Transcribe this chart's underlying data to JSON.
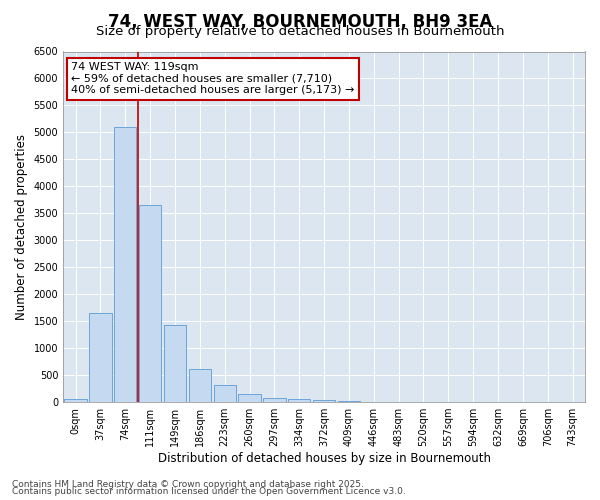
{
  "title": "74, WEST WAY, BOURNEMOUTH, BH9 3EA",
  "subtitle": "Size of property relative to detached houses in Bournemouth",
  "xlabel": "Distribution of detached houses by size in Bournemouth",
  "ylabel": "Number of detached properties",
  "categories": [
    "0sqm",
    "37sqm",
    "74sqm",
    "111sqm",
    "149sqm",
    "186sqm",
    "223sqm",
    "260sqm",
    "297sqm",
    "334sqm",
    "372sqm",
    "409sqm",
    "446sqm",
    "483sqm",
    "520sqm",
    "557sqm",
    "594sqm",
    "632sqm",
    "669sqm",
    "706sqm",
    "743sqm"
  ],
  "values": [
    65,
    1650,
    5100,
    3650,
    1430,
    610,
    310,
    150,
    80,
    50,
    30,
    15,
    5,
    2,
    1,
    1,
    0,
    0,
    0,
    0,
    0
  ],
  "bar_color": "#c5d9f1",
  "bar_edge_color": "#5b9bd5",
  "vline_color": "#c00000",
  "vline_position": 2.5,
  "annotation_line1": "74 WEST WAY: 119sqm",
  "annotation_line2": "← 59% of detached houses are smaller (7,710)",
  "annotation_line3": "40% of semi-detached houses are larger (5,173) →",
  "annotation_box_color": "#c00000",
  "ylim": [
    0,
    6500
  ],
  "yticks": [
    0,
    500,
    1000,
    1500,
    2000,
    2500,
    3000,
    3500,
    4000,
    4500,
    5000,
    5500,
    6000,
    6500
  ],
  "footer_line1": "Contains HM Land Registry data © Crown copyright and database right 2025.",
  "footer_line2": "Contains public sector information licensed under the Open Government Licence v3.0.",
  "fig_bg_color": "#ffffff",
  "plot_bg_color": "#dce6f1",
  "grid_color": "#ffffff",
  "title_fontsize": 12,
  "subtitle_fontsize": 9.5,
  "axis_label_fontsize": 8.5,
  "tick_fontsize": 7,
  "footer_fontsize": 6.5,
  "annotation_fontsize": 8
}
